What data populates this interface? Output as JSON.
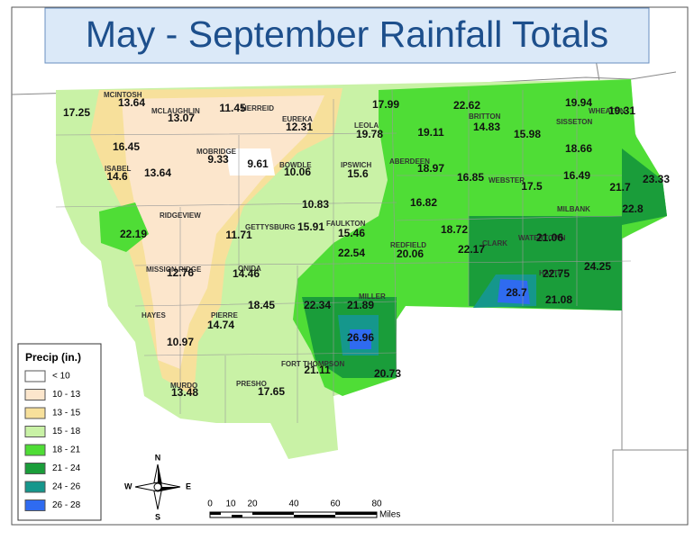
{
  "title": "May - September Rainfall Totals",
  "towns": [
    "MCINTOSH",
    "MCLAUGHLIN",
    "HERREID",
    "EUREKA",
    "LEOLA",
    "BRITTON",
    "SISSETON",
    "WHEATON",
    "MOBRIDGE",
    "BOWDLE",
    "IPSWICH",
    "ABERDEEN",
    "WEBSTER",
    "ISABEL",
    "RIDGEVIEW",
    "GETTYSBURG",
    "FAULKTON",
    "MILBANK",
    "REDFIELD",
    "CLARK",
    "WATERTOWN",
    "MISSION RIDGE",
    "ONIDA",
    "HAYTI",
    "HAYES",
    "PIERRE",
    "MILLER",
    "FORT THOMPSON",
    "MURDO",
    "PRESHO"
  ],
  "values": [
    17.25,
    13.64,
    13.07,
    11.45,
    12.31,
    17.99,
    22.62,
    19.94,
    19.31,
    19.78,
    19.11,
    14.83,
    15.98,
    18.66,
    16.45,
    9.33,
    9.61,
    10.06,
    15.6,
    18.97,
    16.85,
    17.5,
    16.49,
    23.33,
    21.7,
    22.8,
    14.6,
    13.64,
    10.83,
    16.82,
    22.19,
    11.71,
    15.91,
    15.46,
    18.72,
    21.06,
    22.17,
    20.06,
    22.54,
    12.76,
    14.46,
    22.75,
    24.25,
    28.7,
    21.08,
    18.45,
    22.34,
    21.89,
    14.74,
    26.96,
    10.97,
    21.11,
    20.73,
    13.48,
    17.65
  ],
  "legend": {
    "title": "Precip (in.)",
    "items": [
      {
        "label": "<  10",
        "color": "#ffffff"
      },
      {
        "label": "10 - 13",
        "color": "#fce6cc"
      },
      {
        "label": "13 - 15",
        "color": "#f7e09b"
      },
      {
        "label": "15 - 18",
        "color": "#c9f2a6"
      },
      {
        "label": "18 - 21",
        "color": "#4fdd36"
      },
      {
        "label": "21 - 24",
        "color": "#1a9d3a"
      },
      {
        "label": "24 - 26",
        "color": "#15978c"
      },
      {
        "label": "26 - 28",
        "color": "#2f6bf0"
      }
    ]
  },
  "compass": {
    "n": "N",
    "s": "S",
    "e": "E",
    "w": "W"
  },
  "scale": {
    "ticks": [
      "0",
      "10",
      "20",
      "40",
      "60",
      "80"
    ],
    "unit": "Miles"
  }
}
